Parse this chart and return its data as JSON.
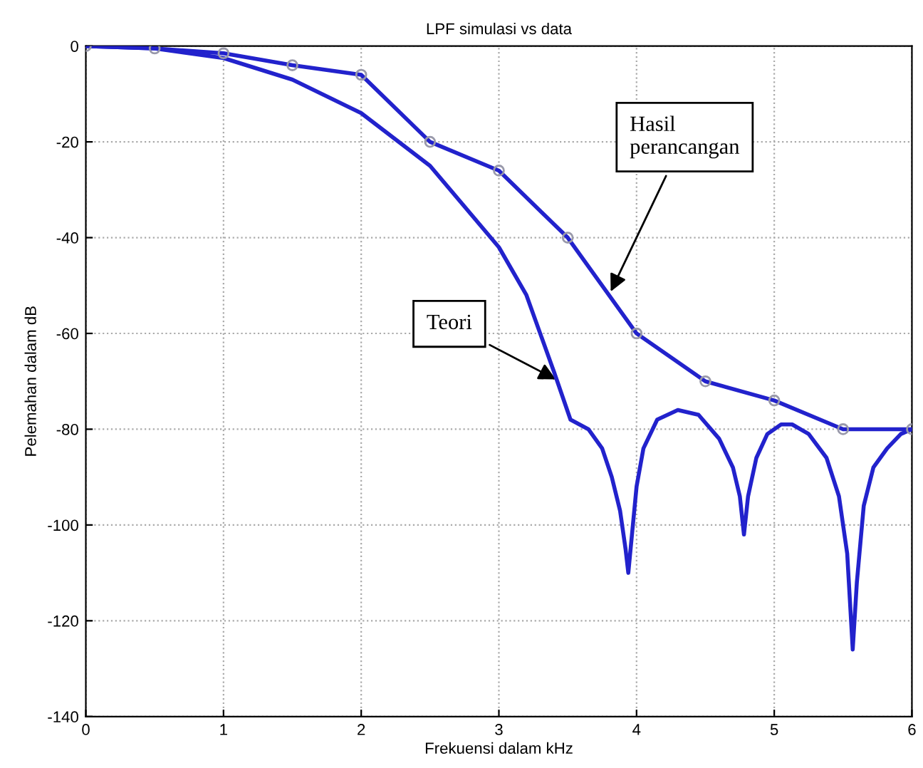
{
  "chart_data": {
    "type": "line",
    "title": "LPF simulasi vs data",
    "xlabel": "Frekuensi dalam kHz",
    "ylabel": "Pelemahan dalam dB",
    "xlim": [
      0,
      6
    ],
    "xticks": [
      0,
      1,
      2,
      3,
      4,
      5,
      6
    ],
    "ylim": [
      -140,
      0
    ],
    "yticks": [
      -140,
      -120,
      -100,
      -80,
      -60,
      -40,
      -20,
      0
    ],
    "grid": true,
    "series": [
      {
        "color": "#2222cc",
        "marker": "circle",
        "x": [
          0,
          0.5,
          1,
          1.5,
          2,
          2.5,
          3,
          3.5,
          4,
          4.5,
          5,
          5.5,
          6
        ],
        "values": [
          0,
          -0.5,
          -1.5,
          -4,
          -6,
          -20,
          -26,
          -40,
          -60,
          -70,
          -74,
          -80,
          -80
        ]
      },
      {
        "color": "#2222cc",
        "marker": "none",
        "x": [
          0,
          0.5,
          1,
          1.5,
          2,
          2.5,
          3,
          3.2,
          3.4,
          3.52,
          3.65,
          3.75,
          3.82,
          3.88,
          3.92,
          3.94,
          3.96,
          4.0,
          4.05,
          4.15,
          4.3,
          4.45,
          4.6,
          4.7,
          4.75,
          4.78,
          4.81,
          4.87,
          4.95,
          5.05,
          5.13,
          5.25,
          5.38,
          5.47,
          5.53,
          5.57,
          5.6,
          5.65,
          5.72,
          5.82,
          5.92,
          6
        ],
        "values": [
          0,
          -0.5,
          -2.5,
          -7,
          -14,
          -25,
          -42,
          -52,
          -68,
          -78,
          -80,
          -84,
          -90,
          -97,
          -105,
          -110,
          -104,
          -92,
          -84,
          -78,
          -76,
          -77,
          -82,
          -88,
          -94,
          -102,
          -94,
          -86,
          -81,
          -79,
          -79,
          -81,
          -86,
          -94,
          -106,
          -126,
          -112,
          -96,
          -88,
          -84,
          -81,
          -80
        ]
      }
    ],
    "annotations": [
      {
        "text": "Hasil\nperancangan",
        "x": 3.8,
        "y": -52
      },
      {
        "text": "Teori",
        "x": 3.44,
        "y": -70
      }
    ]
  }
}
